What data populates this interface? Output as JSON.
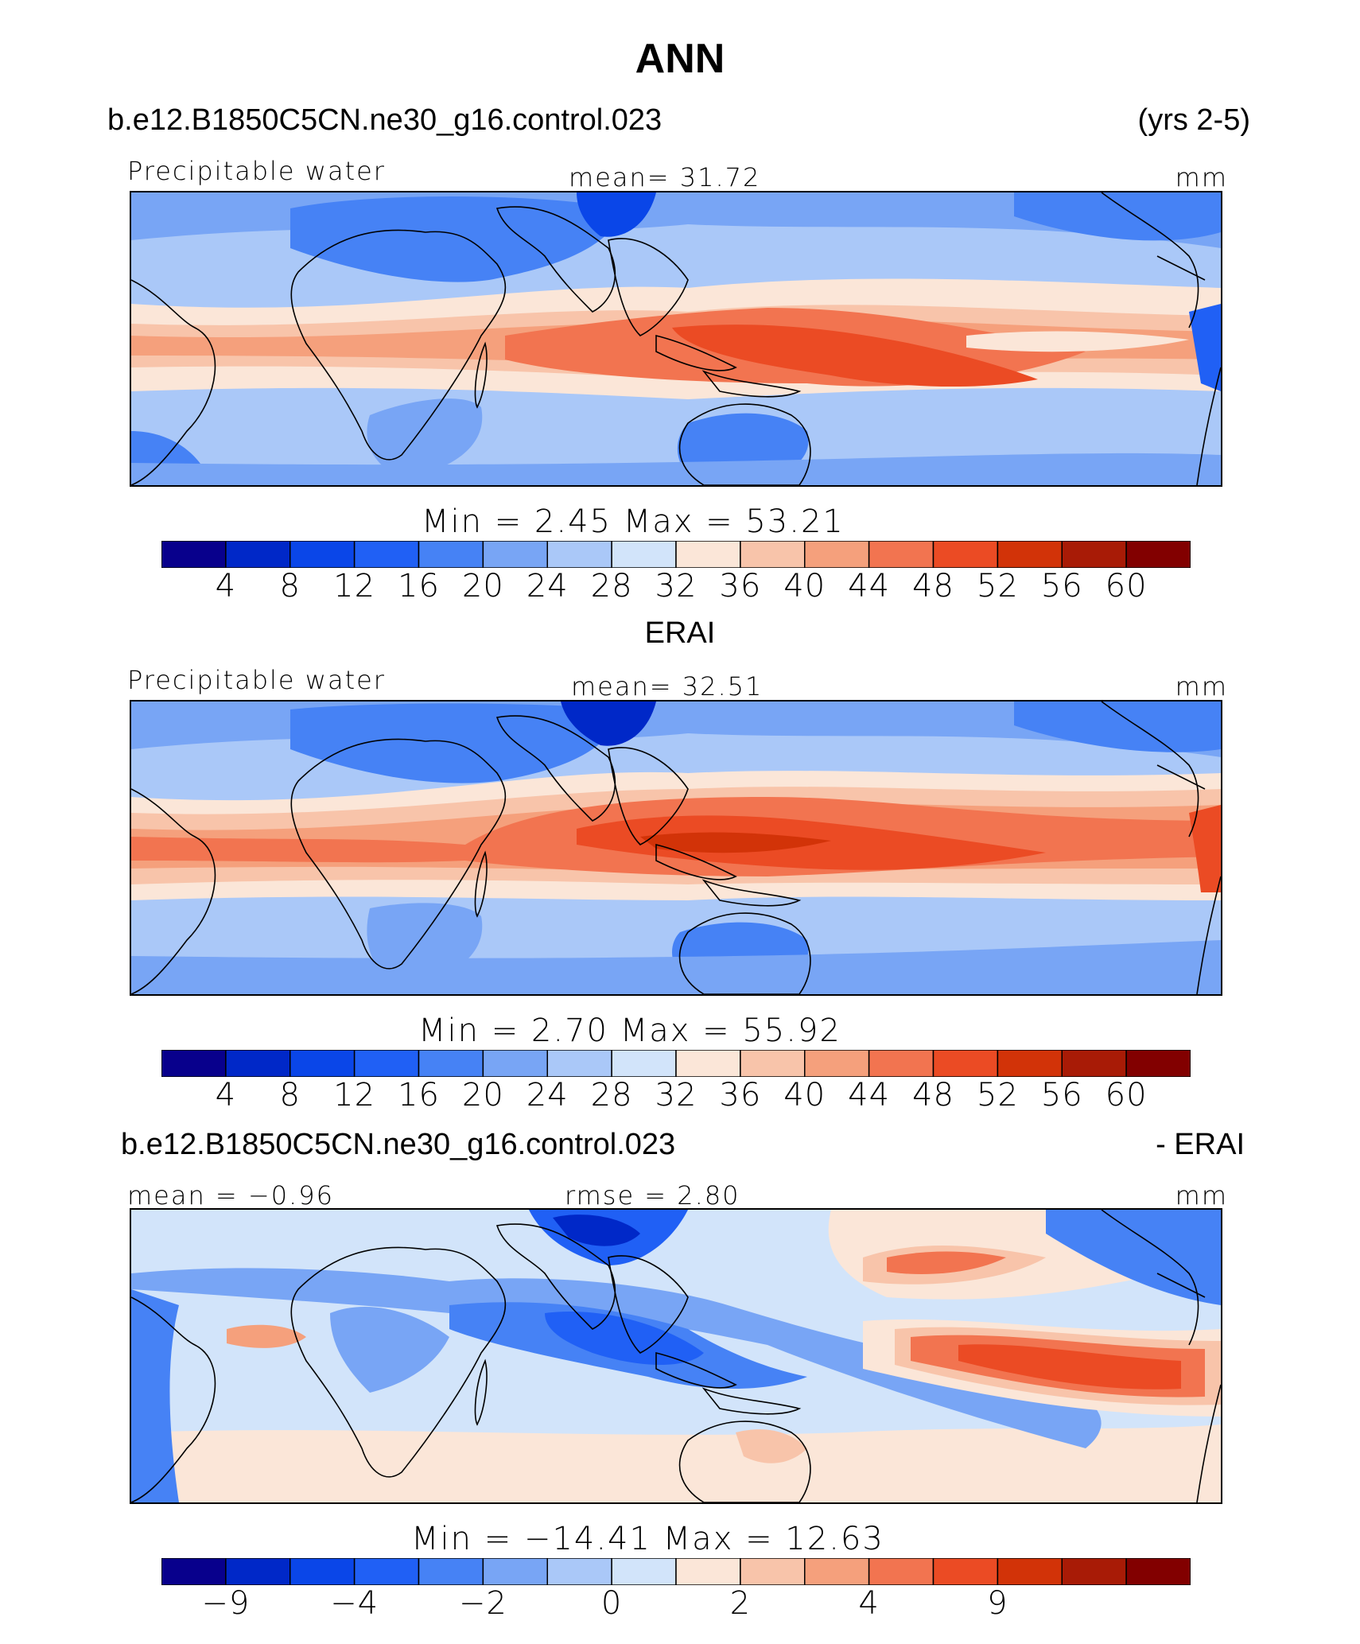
{
  "title": "ANN",
  "panels": [
    {
      "header_left": "b.e12.B1850C5CN.ne30_g16.control.023",
      "header_right": "(yrs 2-5)",
      "left_label": "Precipitable water",
      "center_label": "mean=   31.72",
      "units": "mm",
      "minmax": "Min  =    2.45  Max  =    53.21",
      "colorbar": {
        "ticks": [
          "4",
          "8",
          "12",
          "16",
          "20",
          "24",
          "28",
          "32",
          "36",
          "40",
          "44",
          "48",
          "52",
          "56",
          "60"
        ]
      }
    },
    {
      "header_left": "ERAI",
      "header_right": "",
      "left_label": "Precipitable water",
      "center_label": "mean=   32.51",
      "units": "mm",
      "minmax": "Min  =    2.70  Max  =    55.92",
      "colorbar": {
        "ticks": [
          "4",
          "8",
          "12",
          "16",
          "20",
          "24",
          "28",
          "32",
          "36",
          "40",
          "44",
          "48",
          "52",
          "56",
          "60"
        ]
      }
    },
    {
      "header_left": "b.e12.B1850C5CN.ne30_g16.control.023",
      "header_right": "- ERAI",
      "left_label": "mean =  −0.96",
      "center_label": "rmse =    2.80",
      "units": "mm",
      "minmax": "Min  = −14.41  Max  =    12.63",
      "colorbar": {
        "ticks": [
          "−9",
          "",
          "−4",
          "",
          "−2",
          "",
          "0",
          "",
          "2",
          "",
          "4",
          "",
          "9",
          ""
        ]
      }
    }
  ],
  "palette": [
    "#08008c",
    "#0028c8",
    "#0a46e8",
    "#2060f5",
    "#4682f5",
    "#78a5f5",
    "#aac8f8",
    "#d2e4fa",
    "#fbe6d8",
    "#f8c4aa",
    "#f5a07c",
    "#f27450",
    "#eb4b24",
    "#d23308",
    "#a81b06",
    "#820000"
  ],
  "diverging_palette": [
    "#08008c",
    "#0028c8",
    "#0a46e8",
    "#2060f5",
    "#4682f5",
    "#78a5f5",
    "#aac8f8",
    "#d2e4fa",
    "#fbe6d8",
    "#f8c4aa",
    "#f5a07c",
    "#f27450",
    "#eb4b24",
    "#d23308",
    "#a81b06",
    "#820000"
  ]
}
